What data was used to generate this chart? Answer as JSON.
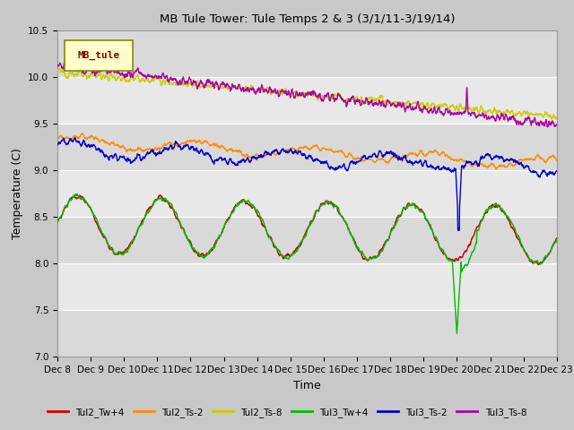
{
  "title": "MB Tule Tower: Tule Temps 2 & 3 (3/1/11-3/19/14)",
  "xlabel": "Time",
  "ylabel": "Temperature (C)",
  "ylim": [
    7.0,
    10.5
  ],
  "xtick_labels": [
    "Dec 8",
    "Dec 9",
    "Dec 10",
    "Dec 11",
    "Dec 12",
    "Dec 13",
    "Dec 14",
    "Dec 15",
    "Dec 16",
    "Dec 17",
    "Dec 18",
    "Dec 19",
    "Dec 20",
    "Dec 21",
    "Dec 22",
    "Dec 23"
  ],
  "series": {
    "Tul2_Tw+4": {
      "color": "#cc0000",
      "lw": 1.0
    },
    "Tul2_Ts-2": {
      "color": "#ff8c00",
      "lw": 1.0
    },
    "Tul2_Ts-8": {
      "color": "#cccc00",
      "lw": 1.0
    },
    "Tul3_Tw+4": {
      "color": "#00bb00",
      "lw": 1.0
    },
    "Tul3_Ts-2": {
      "color": "#0000cc",
      "lw": 1.0
    },
    "Tul3_Ts-8": {
      "color": "#aa00aa",
      "lw": 1.0
    }
  },
  "band_colors": [
    "#d9d9d9",
    "#e8e8e8"
  ],
  "fig_bg": "#c8c8c8",
  "legend_box_bg": "#ffffcc",
  "legend_box_edge": "#888800",
  "legend_text_color": "#880000"
}
